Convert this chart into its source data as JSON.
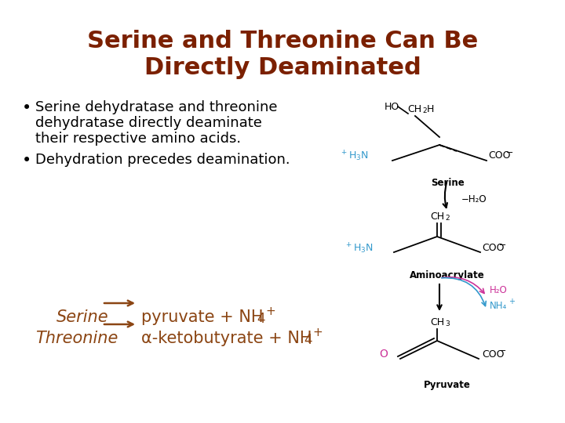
{
  "title_line1": "Serine and Threonine Can Be",
  "title_line2": "Directly Deaminated",
  "title_color": "#7B2000",
  "title_fontsize": 22,
  "bullet1_lines": [
    "Serine dehydratase and threonine",
    "dehydratase directly deaminate",
    "their respective amino acids."
  ],
  "bullet2": "Dehydration precedes deamination.",
  "bullet_fontsize": 13,
  "bullet_color": "#000000",
  "eq_color": "#8B4513",
  "eq_fontsize": 14,
  "background_color": "#ffffff",
  "black": "#000000",
  "cyan": "#3399CC",
  "magenta": "#CC3399",
  "dark_gray": "#333333"
}
